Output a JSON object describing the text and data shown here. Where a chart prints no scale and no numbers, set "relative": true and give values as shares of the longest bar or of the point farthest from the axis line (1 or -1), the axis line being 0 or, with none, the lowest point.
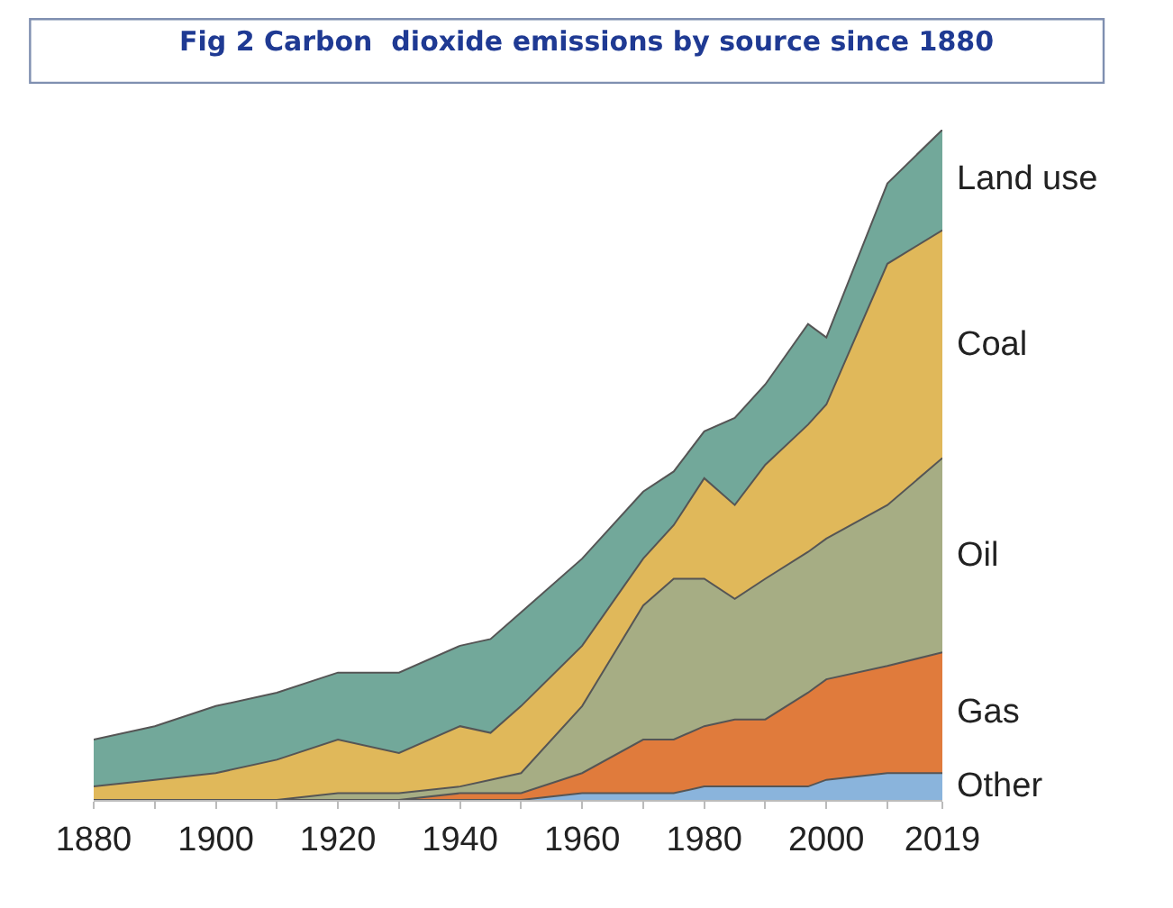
{
  "chart_data": {
    "type": "area",
    "title": "Fig 2 Carbon  dioxide emissions by source since 1880",
    "relative": true,
    "stacked": true,
    "legend": false,
    "x": [
      1880,
      1890,
      1900,
      1910,
      1920,
      1930,
      1940,
      1945,
      1950,
      1960,
      1970,
      1975,
      1980,
      1985,
      1990,
      1997,
      2000,
      2010,
      2019
    ],
    "xlim": [
      1880,
      2019
    ],
    "xticks": [
      1880,
      {
        "value": 1890,
        "label": null
      },
      1900,
      {
        "value": 1910,
        "label": null
      },
      1920,
      {
        "value": 1930,
        "label": null
      },
      1940,
      {
        "value": 1950,
        "label": null
      },
      1960,
      {
        "value": 1970,
        "label": null
      },
      1980,
      {
        "value": 1990,
        "label": null
      },
      2000,
      {
        "value": 2010,
        "label": null
      },
      2019
    ],
    "series": [
      {
        "name": "Other",
        "color": "#8ab4dc",
        "values": [
          0,
          0,
          0,
          0,
          0,
          0,
          0,
          0,
          0,
          0.01,
          0.01,
          0.01,
          0.02,
          0.02,
          0.02,
          0.02,
          0.03,
          0.04,
          0.04
        ]
      },
      {
        "name": "Gas",
        "color": "#e07b3c",
        "values": [
          0,
          0,
          0,
          0,
          0,
          0,
          0.01,
          0.01,
          0.01,
          0.03,
          0.08,
          0.08,
          0.09,
          0.1,
          0.1,
          0.14,
          0.15,
          0.16,
          0.18
        ]
      },
      {
        "name": "Oil",
        "color": "#a6ad84",
        "values": [
          0,
          0,
          0,
          0,
          0.01,
          0.01,
          0.01,
          0.02,
          0.03,
          0.1,
          0.2,
          0.24,
          0.22,
          0.18,
          0.21,
          0.21,
          0.21,
          0.24,
          0.29
        ]
      },
      {
        "name": "Coal",
        "color": "#e0b85a",
        "values": [
          0.02,
          0.03,
          0.04,
          0.06,
          0.08,
          0.06,
          0.09,
          0.07,
          0.1,
          0.09,
          0.07,
          0.08,
          0.15,
          0.14,
          0.17,
          0.19,
          0.2,
          0.36,
          0.34
        ]
      },
      {
        "name": "Land use",
        "color": "#72a89a",
        "values": [
          0.07,
          0.08,
          0.1,
          0.1,
          0.1,
          0.12,
          0.12,
          0.14,
          0.14,
          0.13,
          0.1,
          0.08,
          0.07,
          0.13,
          0.12,
          0.15,
          0.1,
          0.12,
          0.15
        ]
      }
    ]
  }
}
